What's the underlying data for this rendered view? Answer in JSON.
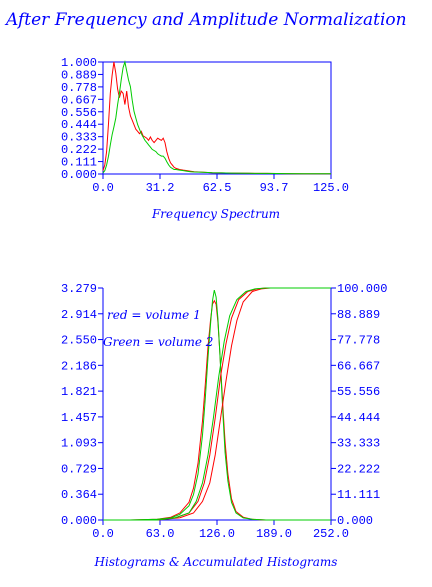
{
  "page_title": "After Frequency and Amplitude Normalization",
  "colors": {
    "axis": "#0000ff",
    "red": "#ff0000",
    "green": "#00cc00",
    "background": "#ffffff"
  },
  "chart_data": [
    {
      "type": "line",
      "title": "",
      "xlabel": "Frequency Spectrum",
      "ylabel": "",
      "xlim": [
        0,
        125
      ],
      "ylim": [
        0,
        1
      ],
      "x_ticks": [
        "0.0",
        "31.2",
        "62.5",
        "93.7",
        "125.0"
      ],
      "y_ticks": [
        "0.000",
        "0.111",
        "0.222",
        "0.333",
        "0.444",
        "0.556",
        "0.667",
        "0.778",
        "0.889",
        "1.000"
      ],
      "grid": false,
      "series": [
        {
          "color": "#ff0000",
          "x": [
            0,
            1,
            2,
            3,
            4,
            5,
            6,
            7,
            8,
            9,
            10,
            11,
            12,
            13,
            14,
            15,
            16,
            17,
            18,
            19,
            20,
            21,
            22,
            23,
            24,
            25,
            26,
            27,
            28,
            29,
            30,
            31,
            32,
            33,
            34,
            35,
            36,
            37,
            38,
            39,
            40,
            42,
            44,
            46,
            48,
            50,
            55,
            60,
            65,
            70,
            80,
            90,
            100,
            110,
            120,
            125
          ],
          "y": [
            0.03,
            0.08,
            0.2,
            0.45,
            0.72,
            0.88,
            1.0,
            0.9,
            0.76,
            0.68,
            0.74,
            0.72,
            0.62,
            0.74,
            0.6,
            0.52,
            0.48,
            0.44,
            0.4,
            0.38,
            0.36,
            0.38,
            0.34,
            0.33,
            0.32,
            0.3,
            0.33,
            0.3,
            0.28,
            0.3,
            0.32,
            0.31,
            0.3,
            0.32,
            0.28,
            0.2,
            0.14,
            0.1,
            0.08,
            0.06,
            0.05,
            0.04,
            0.035,
            0.03,
            0.025,
            0.02,
            0.015,
            0.012,
            0.01,
            0.008,
            0.006,
            0.005,
            0.004,
            0.003,
            0.002,
            0.002
          ]
        },
        {
          "color": "#00cc00",
          "x": [
            0,
            1,
            2,
            3,
            4,
            5,
            6,
            7,
            8,
            9,
            10,
            11,
            12,
            13,
            14,
            15,
            16,
            17,
            18,
            19,
            20,
            21,
            22,
            23,
            24,
            25,
            26,
            27,
            28,
            29,
            30,
            31,
            32,
            33,
            34,
            35,
            36,
            37,
            38,
            39,
            40,
            42,
            44,
            46,
            48,
            50,
            55,
            60,
            65,
            70,
            80,
            90,
            100,
            110,
            120,
            125
          ],
          "y": [
            0.01,
            0.03,
            0.08,
            0.16,
            0.26,
            0.35,
            0.42,
            0.5,
            0.62,
            0.72,
            0.84,
            0.95,
            1.0,
            0.92,
            0.84,
            0.78,
            0.66,
            0.56,
            0.5,
            0.44,
            0.4,
            0.36,
            0.33,
            0.3,
            0.28,
            0.26,
            0.24,
            0.22,
            0.21,
            0.2,
            0.18,
            0.17,
            0.16,
            0.16,
            0.14,
            0.11,
            0.08,
            0.06,
            0.05,
            0.04,
            0.04,
            0.035,
            0.03,
            0.025,
            0.02,
            0.018,
            0.015,
            0.012,
            0.01,
            0.008,
            0.006,
            0.005,
            0.004,
            0.003,
            0.002,
            0.002
          ]
        }
      ]
    },
    {
      "type": "line",
      "title": "",
      "xlabel": "Histograms & Accumulated Histograms",
      "ylabel": "",
      "xlim": [
        0,
        252
      ],
      "ylim": [
        0,
        3.279
      ],
      "y2lim": [
        0,
        100
      ],
      "x_ticks": [
        "0.0",
        "63.0",
        "126.0",
        "189.0",
        "252.0"
      ],
      "y_ticks": [
        "0.000",
        "0.364",
        "0.729",
        "1.093",
        "1.457",
        "1.821",
        "2.186",
        "2.550",
        "2.914",
        "3.279"
      ],
      "y2_ticks": [
        "0.000",
        "11.111",
        "22.222",
        "33.333",
        "44.444",
        "55.556",
        "66.667",
        "77.778",
        "88.889",
        "100.000"
      ],
      "grid": false,
      "legend": [
        "red = volume 1",
        "Green = volume 2"
      ],
      "legend_placement": "top-left",
      "histograms": [
        {
          "color": "#ff0000",
          "x": [
            0,
            30,
            60,
            75,
            85,
            95,
            100,
            105,
            110,
            113,
            116,
            119,
            121,
            123,
            125,
            127,
            129,
            131,
            133,
            135,
            138,
            142,
            147,
            155,
            165,
            180,
            200,
            252
          ],
          "y": [
            0,
            0,
            0.01,
            0.04,
            0.1,
            0.25,
            0.45,
            0.8,
            1.4,
            1.9,
            2.45,
            2.85,
            3.05,
            3.1,
            3.05,
            2.8,
            2.4,
            1.95,
            1.5,
            1.1,
            0.65,
            0.3,
            0.12,
            0.04,
            0.01,
            0,
            0,
            0
          ]
        },
        {
          "color": "#00cc00",
          "x": [
            0,
            30,
            60,
            75,
            85,
            95,
            100,
            105,
            110,
            113,
            116,
            119,
            121,
            123,
            125,
            127,
            129,
            131,
            133,
            135,
            138,
            142,
            147,
            155,
            165,
            180,
            200,
            252
          ],
          "y": [
            0,
            0,
            0.01,
            0.03,
            0.08,
            0.2,
            0.36,
            0.65,
            1.2,
            1.7,
            2.3,
            2.8,
            3.1,
            3.25,
            3.15,
            2.85,
            2.4,
            1.9,
            1.4,
            0.95,
            0.55,
            0.25,
            0.1,
            0.03,
            0.01,
            0,
            0,
            0
          ]
        }
      ],
      "accumulated": [
        {
          "color": "#ff0000",
          "x": [
            0,
            60,
            80,
            95,
            105,
            112,
            118,
            124,
            130,
            136,
            142,
            150,
            160,
            170,
            180,
            190,
            252
          ],
          "y": [
            0,
            0,
            1,
            3,
            8,
            16,
            28,
            44,
            62,
            76,
            87,
            95,
            98.5,
            99.6,
            100,
            100,
            100
          ]
        },
        {
          "color": "#ff0000",
          "x": [
            0,
            60,
            85,
            100,
            110,
            118,
            124,
            130,
            136,
            142,
            148,
            155,
            165,
            175,
            185,
            195,
            252
          ],
          "y": [
            0,
            0,
            1,
            3,
            8,
            16,
            28,
            44,
            60,
            75,
            86,
            94,
            98.5,
            99.6,
            100,
            100,
            100
          ]
        },
        {
          "color": "#00cc00",
          "x": [
            0,
            60,
            80,
            95,
            103,
            110,
            116,
            122,
            128,
            134,
            140,
            148,
            158,
            168,
            180,
            190,
            252
          ],
          "y": [
            0,
            0,
            1,
            3,
            8,
            16,
            28,
            44,
            62,
            77,
            88,
            95,
            98.5,
            99.6,
            100,
            100,
            100
          ]
        }
      ]
    }
  ]
}
